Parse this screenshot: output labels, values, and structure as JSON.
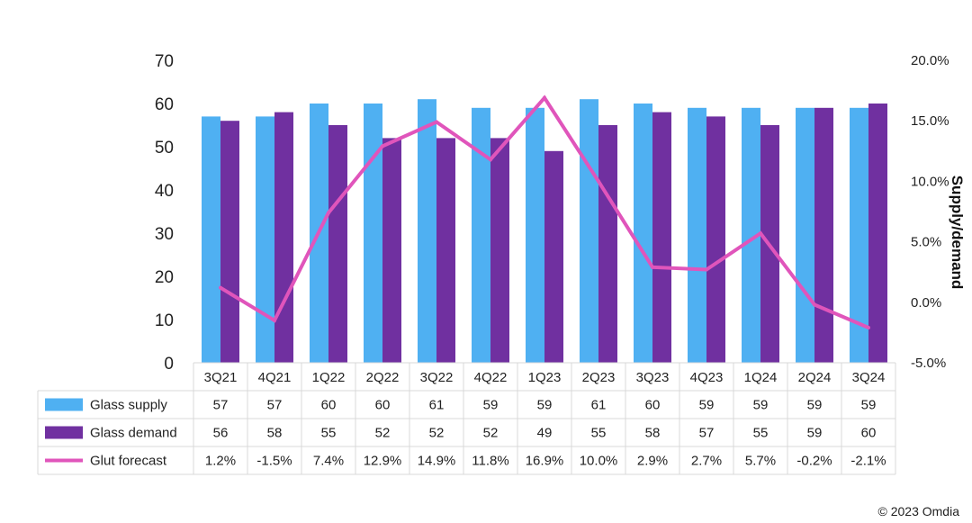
{
  "chart_data": {
    "type": "bar",
    "categories": [
      "3Q21",
      "4Q21",
      "1Q22",
      "2Q22",
      "3Q22",
      "4Q22",
      "1Q23",
      "2Q23",
      "3Q23",
      "4Q23",
      "1Q24",
      "2Q24",
      "3Q24"
    ],
    "series": [
      {
        "name": "Glass supply",
        "type": "bar",
        "axis": "left",
        "color": "#4fb0f2",
        "values": [
          57,
          57,
          60,
          60,
          61,
          59,
          59,
          61,
          60,
          59,
          59,
          59,
          59
        ]
      },
      {
        "name": "Glass demand",
        "type": "bar",
        "axis": "left",
        "color": "#7030a0",
        "values": [
          56,
          58,
          55,
          52,
          52,
          52,
          49,
          55,
          58,
          57,
          55,
          59,
          60
        ]
      },
      {
        "name": "Glut forecast",
        "type": "line",
        "axis": "right",
        "color": "#e055bb",
        "values": [
          1.2,
          -1.5,
          7.4,
          12.9,
          14.9,
          11.8,
          16.9,
          10.0,
          2.9,
          2.7,
          5.7,
          -0.2,
          -2.1
        ]
      }
    ],
    "table": {
      "rows": [
        {
          "label": "Glass supply",
          "cells": [
            "57",
            "57",
            "60",
            "60",
            "61",
            "59",
            "59",
            "61",
            "60",
            "59",
            "59",
            "59",
            "59"
          ]
        },
        {
          "label": "Glass demand",
          "cells": [
            "56",
            "58",
            "55",
            "52",
            "52",
            "52",
            "49",
            "55",
            "58",
            "57",
            "55",
            "59",
            "60"
          ]
        },
        {
          "label": "Glut forecast",
          "cells": [
            "1.2%",
            "-1.5%",
            "7.4%",
            "12.9%",
            "14.9%",
            "11.8%",
            "16.9%",
            "10.0%",
            "2.9%",
            "2.7%",
            "5.7%",
            "-0.2%",
            "-2.1%"
          ]
        }
      ]
    },
    "y_left": {
      "ylim": [
        0,
        70
      ],
      "ticks": [
        "0",
        "10",
        "20",
        "30",
        "40",
        "50",
        "60",
        "70"
      ]
    },
    "y_right": {
      "ylim": [
        -5,
        20
      ],
      "ticks": [
        "-5.0%",
        "0.0%",
        "5.0%",
        "10.0%",
        "15.0%",
        "20.0%"
      ],
      "label": "Supply/demand"
    },
    "grid": false,
    "legend": "data-table"
  },
  "credit": "© 2023 Omdia"
}
